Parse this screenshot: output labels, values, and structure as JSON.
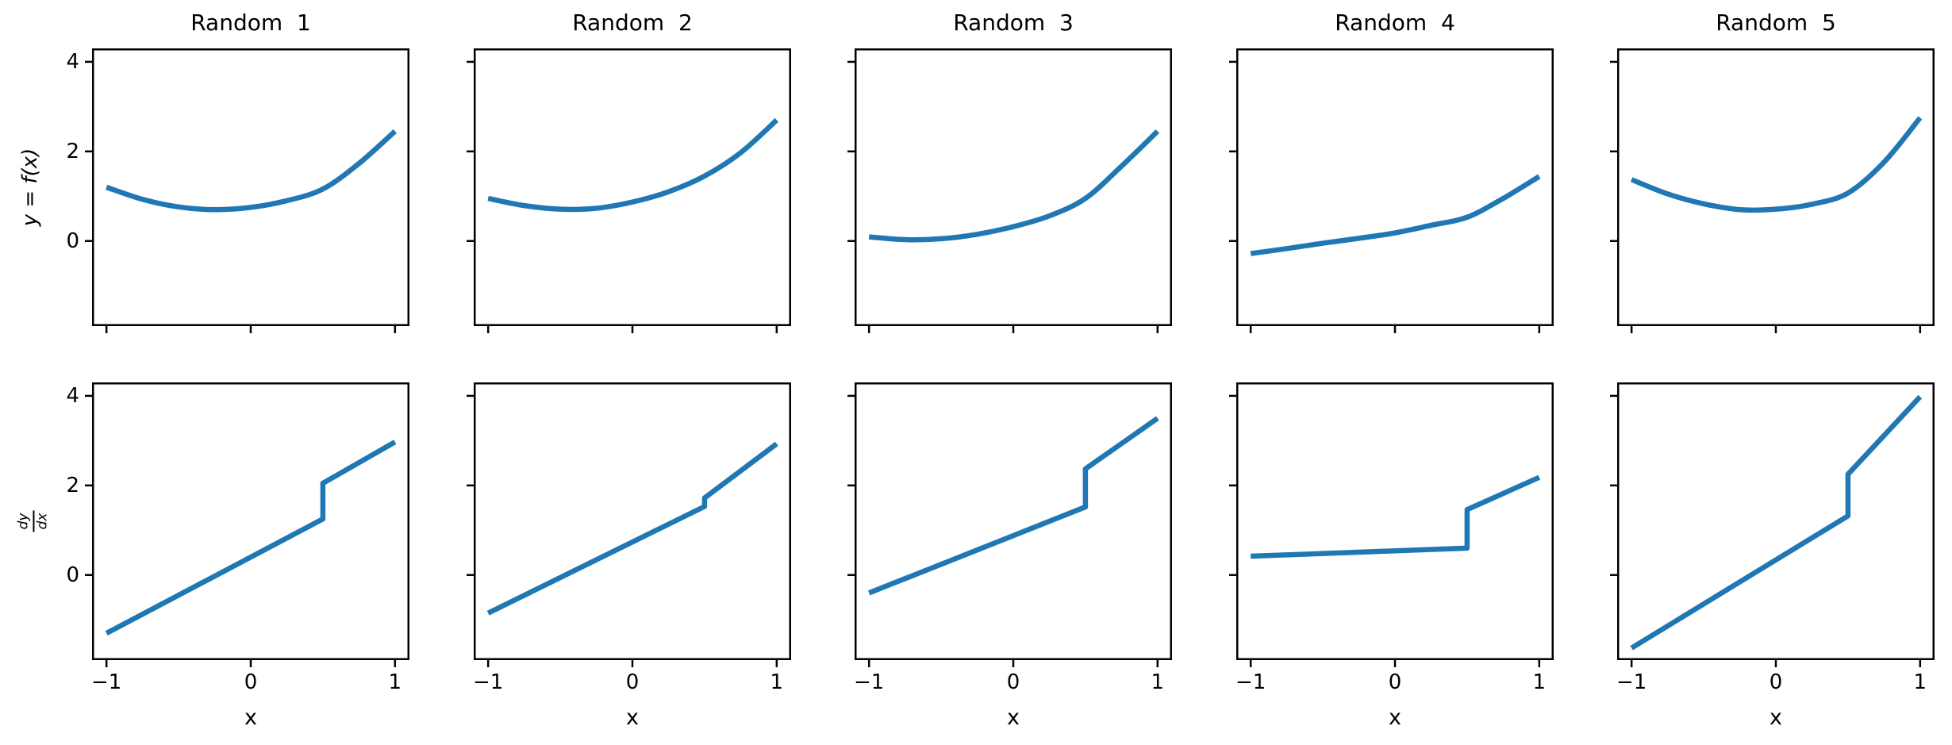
{
  "figure": {
    "background_color": "#ffffff",
    "line_color": "#1f77b4",
    "spine_color": "#000000",
    "ylabel_fraction": {
      "num": "dy",
      "den": "dx"
    },
    "axes": {
      "xlim": [
        -1.1,
        1.1
      ],
      "ylim": [
        -1.9,
        4.3
      ],
      "xticks": {
        "values": [
          -1,
          0,
          1
        ],
        "labels": [
          "−1",
          "0",
          "1"
        ]
      },
      "yticks": {
        "values": [
          0,
          2,
          4
        ],
        "labels": [
          "0",
          "2",
          "4"
        ]
      },
      "grid": false,
      "legend": "none"
    }
  },
  "chart_data": [
    {
      "name": "random-1-function",
      "type": "line",
      "row": 0,
      "col": 0,
      "smooth": true,
      "title": "Random  1",
      "ylabel": "y = f(x)",
      "xlabel": "",
      "x": [
        -1,
        -0.75,
        -0.5,
        -0.25,
        0,
        0.25,
        0.5,
        0.75,
        1
      ],
      "y": [
        1.2,
        0.93,
        0.76,
        0.7,
        0.75,
        0.9,
        1.16,
        1.73,
        2.45
      ]
    },
    {
      "name": "random-2-function",
      "type": "line",
      "row": 0,
      "col": 1,
      "smooth": true,
      "title": "Random  2",
      "ylabel": "",
      "xlabel": "",
      "x": [
        -1,
        -0.75,
        -0.5,
        -0.25,
        0,
        0.25,
        0.5,
        0.75,
        1
      ],
      "y": [
        0.95,
        0.79,
        0.71,
        0.73,
        0.87,
        1.1,
        1.45,
        1.97,
        2.7
      ]
    },
    {
      "name": "random-3-function",
      "type": "line",
      "row": 0,
      "col": 2,
      "smooth": true,
      "title": "Random  3",
      "ylabel": "",
      "xlabel": "",
      "x": [
        -1,
        -0.75,
        -0.5,
        -0.25,
        0,
        0.25,
        0.5,
        0.75,
        1
      ],
      "y": [
        0.09,
        0.03,
        0.05,
        0.15,
        0.32,
        0.56,
        0.95,
        1.67,
        2.45
      ]
    },
    {
      "name": "random-4-function",
      "type": "line",
      "row": 0,
      "col": 3,
      "smooth": true,
      "title": "Random  4",
      "ylabel": "",
      "xlabel": "",
      "x": [
        -1,
        -0.75,
        -0.5,
        -0.25,
        0,
        0.25,
        0.5,
        0.75,
        1
      ],
      "y": [
        -0.28,
        -0.17,
        -0.05,
        0.06,
        0.18,
        0.35,
        0.53,
        0.95,
        1.44
      ]
    },
    {
      "name": "random-5-function",
      "type": "line",
      "row": 0,
      "col": 4,
      "smooth": true,
      "title": "Random  5",
      "ylabel": "",
      "xlabel": "",
      "x": [
        -1,
        -0.75,
        -0.5,
        -0.25,
        0,
        0.25,
        0.5,
        0.75,
        1
      ],
      "y": [
        1.37,
        1.05,
        0.83,
        0.7,
        0.71,
        0.82,
        1.07,
        1.76,
        2.75
      ]
    },
    {
      "name": "random-1-derivative",
      "type": "line",
      "row": 1,
      "col": 0,
      "smooth": false,
      "title": "",
      "ylabel": "dy/dx",
      "xlabel": "x",
      "x": [
        -1,
        0.5,
        0.5,
        1
      ],
      "y": [
        -1.3,
        1.25,
        2.05,
        2.97
      ]
    },
    {
      "name": "random-2-derivative",
      "type": "line",
      "row": 1,
      "col": 1,
      "smooth": false,
      "title": "",
      "ylabel": "",
      "xlabel": "x",
      "x": [
        -1,
        0.5,
        0.5,
        1
      ],
      "y": [
        -0.85,
        1.53,
        1.72,
        2.93
      ]
    },
    {
      "name": "random-3-derivative",
      "type": "line",
      "row": 1,
      "col": 2,
      "smooth": false,
      "title": "",
      "ylabel": "",
      "xlabel": "x",
      "x": [
        -1,
        0.5,
        0.5,
        1
      ],
      "y": [
        -0.4,
        1.52,
        2.37,
        3.5
      ]
    },
    {
      "name": "random-4-derivative",
      "type": "line",
      "row": 1,
      "col": 3,
      "smooth": false,
      "title": "",
      "ylabel": "",
      "xlabel": "x",
      "x": [
        -1,
        0.5,
        0.5,
        1
      ],
      "y": [
        0.42,
        0.6,
        1.46,
        2.18
      ]
    },
    {
      "name": "random-5-derivative",
      "type": "line",
      "row": 1,
      "col": 4,
      "smooth": false,
      "title": "",
      "ylabel": "",
      "xlabel": "x",
      "x": [
        -1,
        0.5,
        0.5,
        1
      ],
      "y": [
        -1.63,
        1.32,
        2.25,
        3.98
      ]
    }
  ]
}
